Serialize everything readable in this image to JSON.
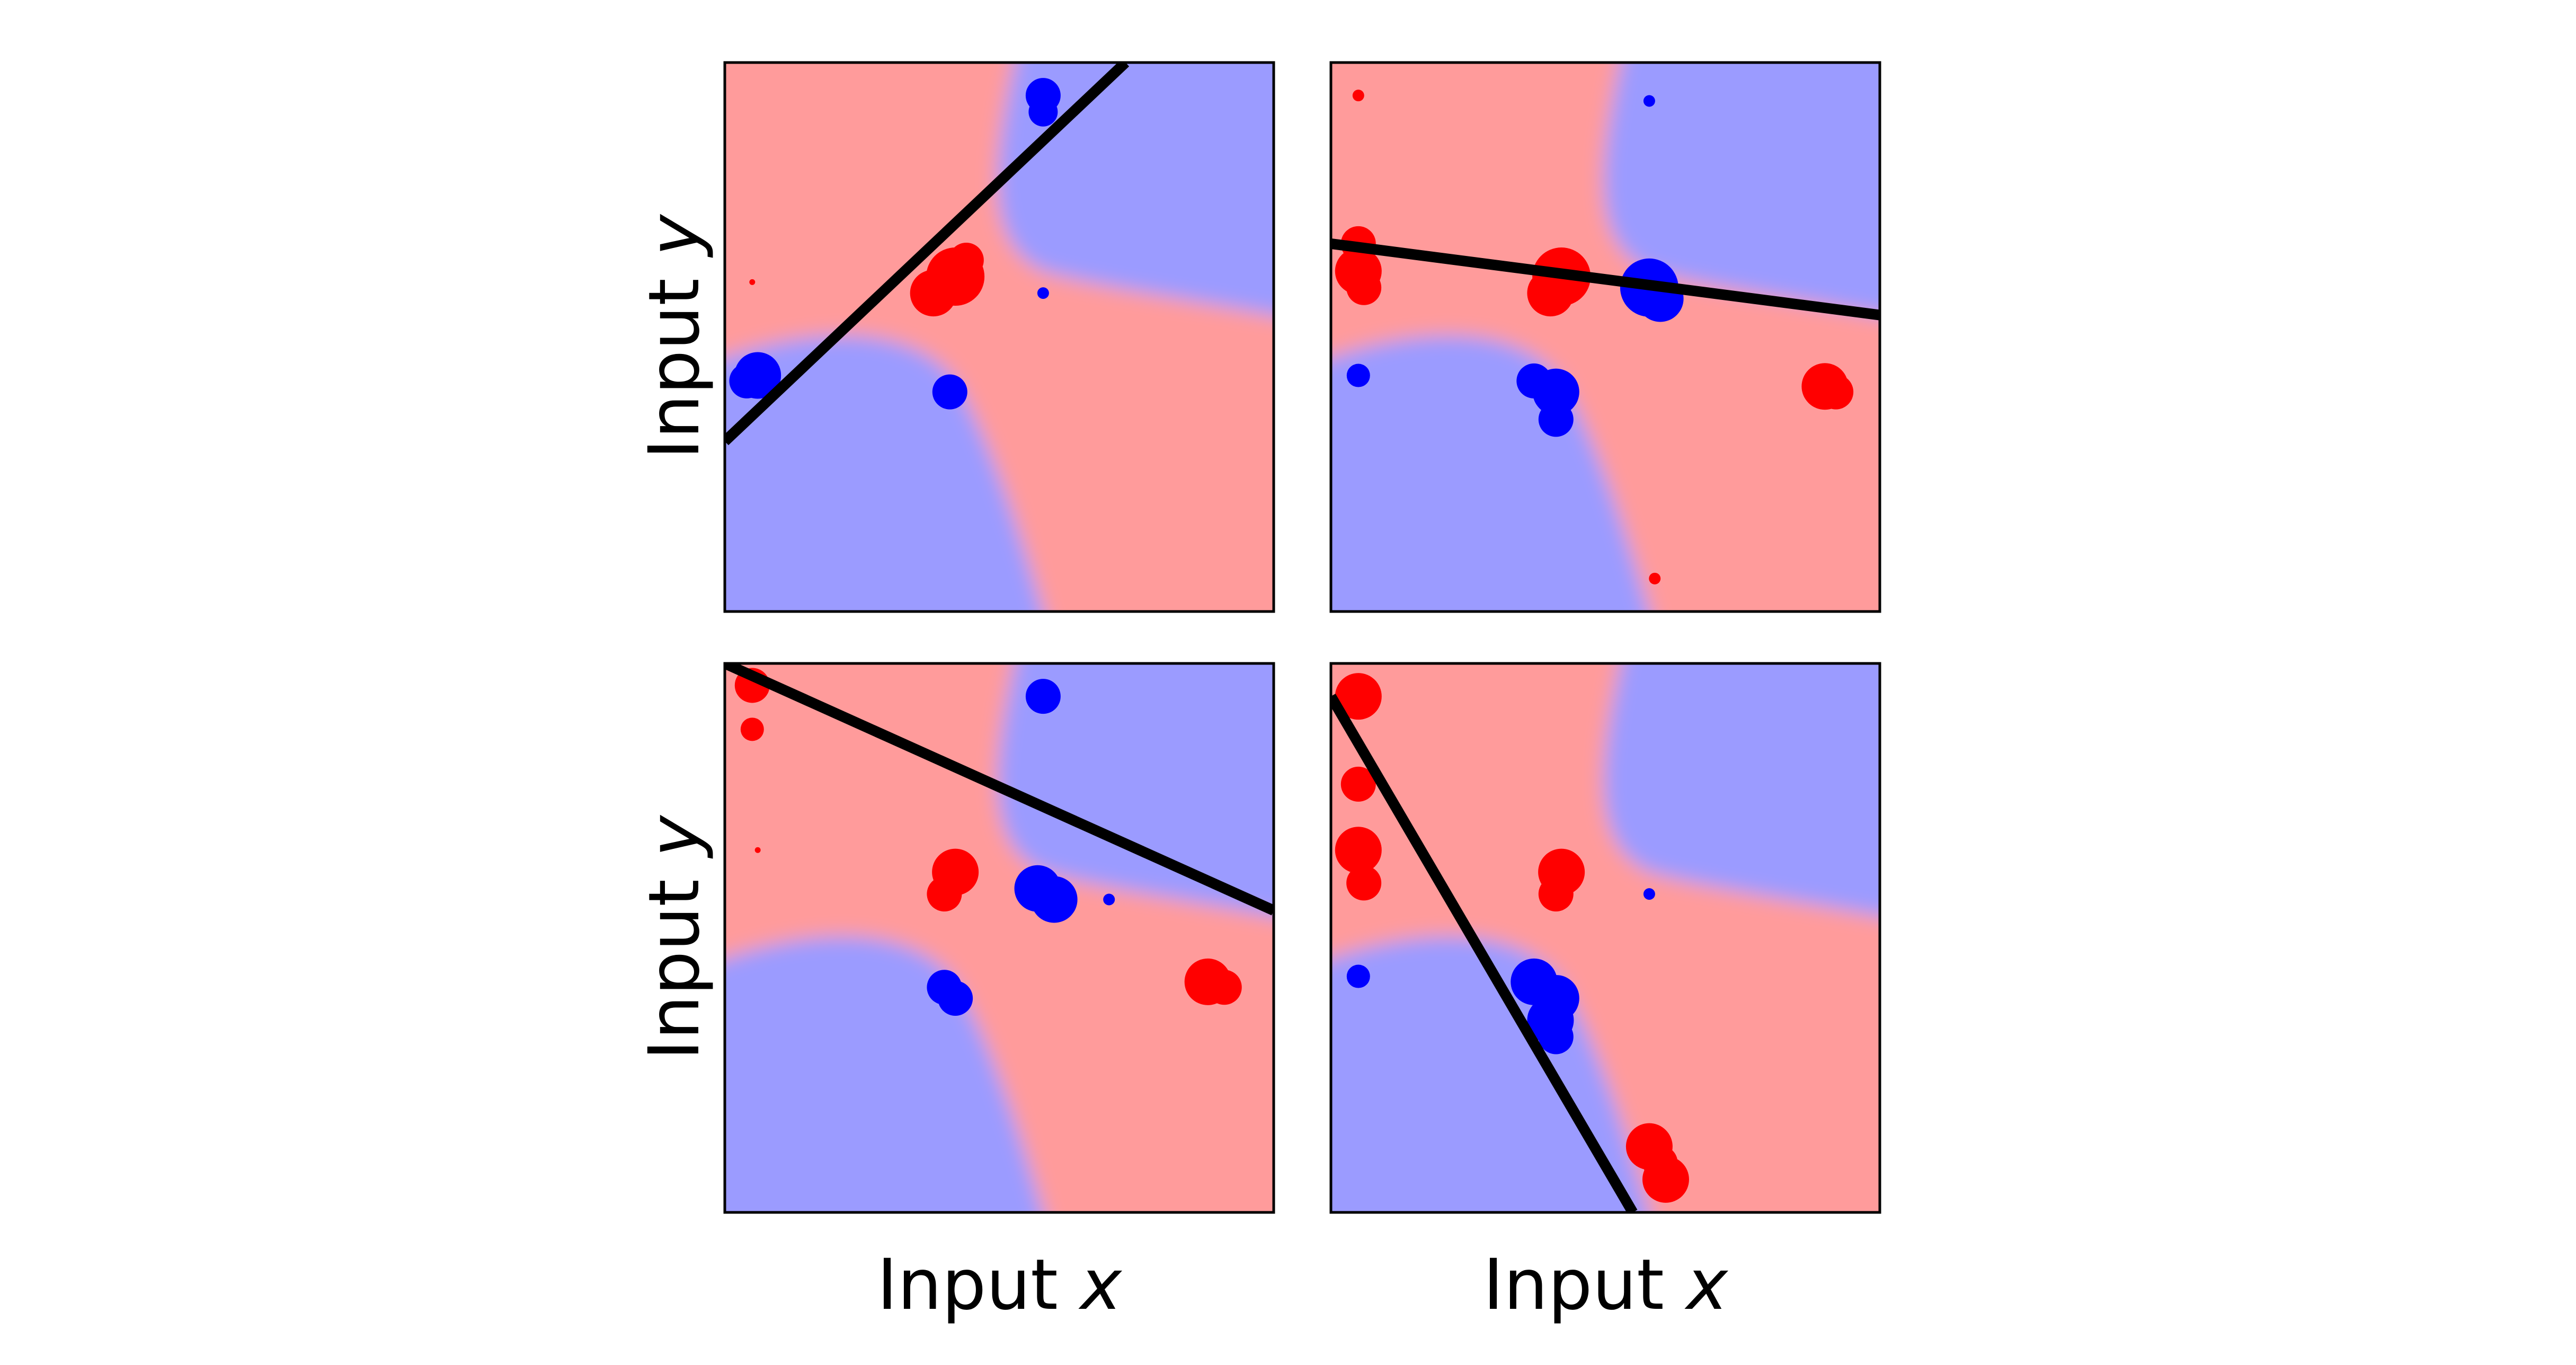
{
  "colors": {
    "red_region": "#ff9b9b",
    "blue_region": "#9b9bff",
    "red_points": "#ff0000",
    "blue_points": "#0000ff",
    "line": "#000000"
  },
  "labels": {
    "xlabel_prefix": "Input ",
    "xlabel_var": "x",
    "ylabel_prefix": "Input ",
    "ylabel_var": "y"
  },
  "chart_data": [
    {
      "type": "scatter",
      "panel": "top-left",
      "xlim": [
        0,
        1
      ],
      "ylim": [
        0,
        1
      ],
      "line": [
        [
          0.0,
          0.31
        ],
        [
          0.73,
          1.0
        ]
      ],
      "red_points": [
        [
          0.42,
          0.61,
          5
        ],
        [
          0.38,
          0.58,
          4
        ],
        [
          0.44,
          0.64,
          3
        ],
        [
          0.05,
          0.6,
          0.5
        ]
      ],
      "blue_points": [
        [
          0.58,
          0.94,
          3
        ],
        [
          0.58,
          0.91,
          2.5
        ],
        [
          0.06,
          0.43,
          4
        ],
        [
          0.04,
          0.42,
          3
        ],
        [
          0.41,
          0.4,
          3
        ],
        [
          0.58,
          0.58,
          1
        ]
      ]
    },
    {
      "type": "scatter",
      "panel": "top-right",
      "xlim": [
        0,
        1
      ],
      "ylim": [
        0,
        1
      ],
      "line": [
        [
          0.0,
          0.67
        ],
        [
          1.0,
          0.54
        ]
      ],
      "red_points": [
        [
          0.05,
          0.62,
          4
        ],
        [
          0.06,
          0.59,
          3
        ],
        [
          0.05,
          0.67,
          3
        ],
        [
          0.05,
          0.94,
          1
        ],
        [
          0.42,
          0.61,
          5
        ],
        [
          0.4,
          0.58,
          4
        ],
        [
          0.9,
          0.41,
          4
        ],
        [
          0.92,
          0.4,
          3
        ],
        [
          0.59,
          0.06,
          1
        ]
      ],
      "blue_points": [
        [
          0.58,
          0.59,
          5
        ],
        [
          0.6,
          0.57,
          4
        ],
        [
          0.05,
          0.43,
          2
        ],
        [
          0.37,
          0.42,
          3
        ],
        [
          0.41,
          0.4,
          4
        ],
        [
          0.41,
          0.35,
          3
        ],
        [
          0.58,
          0.93,
          1
        ]
      ]
    },
    {
      "type": "scatter",
      "panel": "bottom-left",
      "xlim": [
        0,
        1
      ],
      "ylim": [
        0,
        1
      ],
      "line": [
        [
          0.0,
          1.0
        ],
        [
          1.0,
          0.55
        ]
      ],
      "red_points": [
        [
          0.05,
          0.96,
          3
        ],
        [
          0.05,
          0.88,
          2
        ],
        [
          0.42,
          0.62,
          4
        ],
        [
          0.4,
          0.58,
          3
        ],
        [
          0.88,
          0.42,
          4
        ],
        [
          0.91,
          0.41,
          3
        ],
        [
          0.06,
          0.66,
          0.5
        ]
      ],
      "blue_points": [
        [
          0.58,
          0.94,
          3
        ],
        [
          0.57,
          0.59,
          4
        ],
        [
          0.6,
          0.57,
          4
        ],
        [
          0.4,
          0.41,
          3
        ],
        [
          0.42,
          0.39,
          3
        ],
        [
          0.7,
          0.57,
          1
        ]
      ]
    },
    {
      "type": "scatter",
      "panel": "bottom-right",
      "xlim": [
        0,
        1
      ],
      "ylim": [
        0,
        1
      ],
      "line": [
        [
          0.0,
          0.94
        ],
        [
          0.55,
          0.0
        ]
      ],
      "red_points": [
        [
          0.05,
          0.94,
          4
        ],
        [
          0.05,
          0.78,
          3
        ],
        [
          0.05,
          0.66,
          4
        ],
        [
          0.06,
          0.6,
          3
        ],
        [
          0.42,
          0.62,
          4
        ],
        [
          0.41,
          0.58,
          3
        ],
        [
          0.58,
          0.12,
          4
        ],
        [
          0.61,
          0.06,
          4
        ],
        [
          0.6,
          0.09,
          3
        ]
      ],
      "blue_points": [
        [
          0.37,
          0.42,
          4
        ],
        [
          0.41,
          0.39,
          4
        ],
        [
          0.4,
          0.35,
          4
        ],
        [
          0.41,
          0.32,
          3
        ],
        [
          0.05,
          0.43,
          2
        ],
        [
          0.58,
          0.58,
          1
        ]
      ]
    }
  ]
}
